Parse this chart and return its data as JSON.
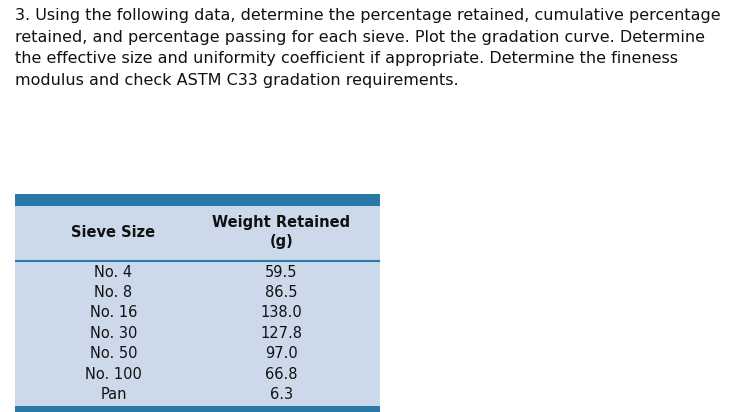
{
  "title_text": "3. Using the following data, determine the percentage retained, cumulative percentage\nretained, and percentage passing for each sieve. Plot the gradation curve. Determine\nthe effective size and uniformity coefficient if appropriate. Determine the fineness\nmodulus and check ASTM C33 gradation requirements.",
  "col_header_left": "Sieve Size",
  "col_header_right_line1": "Weight Retained",
  "col_header_right_line2": "(g)",
  "rows": [
    [
      "No. 4",
      "59.5"
    ],
    [
      "No. 8",
      "86.5"
    ],
    [
      "No. 16",
      "138.0"
    ],
    [
      "No. 30",
      "127.8"
    ],
    [
      "No. 50",
      "97.0"
    ],
    [
      "No. 100",
      "66.8"
    ],
    [
      "Pan",
      "6.3"
    ]
  ],
  "background_color": "#ccd9ea",
  "top_bar_color": "#2878a8",
  "bottom_bar_color": "#2878a8",
  "header_line_color": "#2878a8",
  "text_color": "#111111",
  "header_font_size": 10.5,
  "body_font_size": 10.5,
  "title_font_size": 11.5,
  "fig_bg": "#ffffff"
}
